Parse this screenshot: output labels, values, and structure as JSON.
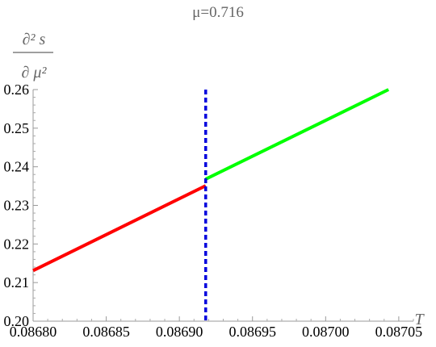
{
  "chart_data": {
    "type": "line",
    "title": "μ=0.716",
    "ylabel_numerator": "∂² s",
    "ylabel_denominator": "∂ μ²",
    "xlabel": "T",
    "xlim": [
      0.0868,
      0.08706
    ],
    "ylim": [
      0.2,
      0.26
    ],
    "xticks": [
      "0.08680",
      "0.08685",
      "0.08690",
      "0.08695",
      "0.08700",
      "0.08705"
    ],
    "yticks": [
      "0.20",
      "0.21",
      "0.22",
      "0.23",
      "0.24",
      "0.25",
      "0.26"
    ],
    "series": [
      {
        "color": "#ff0000",
        "x": [
          0.0868,
          0.086918
        ],
        "y": [
          0.2131,
          0.2351
        ]
      },
      {
        "color": "#00ff00",
        "x": [
          0.086918,
          0.087043
        ],
        "y": [
          0.2368,
          0.26
        ]
      }
    ],
    "vline": {
      "x": 0.086918,
      "color": "#0000dd",
      "style": "dotted"
    }
  }
}
